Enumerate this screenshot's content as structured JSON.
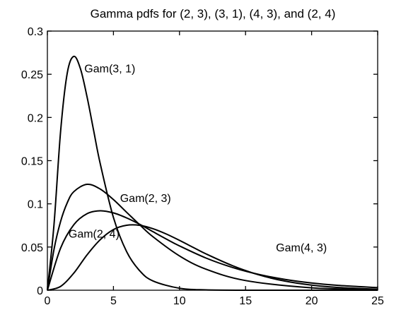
{
  "chart_data": {
    "type": "line",
    "title": "Gamma pdfs for (2, 3), (3, 1), (4, 3), and (2, 4)",
    "xlabel": "",
    "ylabel": "",
    "xlim": [
      0,
      25
    ],
    "ylim": [
      0,
      0.3
    ],
    "grid": false,
    "x_ticks": [
      0,
      5,
      10,
      15,
      20,
      25
    ],
    "x_tick_labels": [
      "0",
      "5",
      "10",
      "15",
      "20",
      "25"
    ],
    "y_ticks": [
      0,
      0.05,
      0.1,
      0.15,
      0.2,
      0.25,
      0.3
    ],
    "y_tick_labels": [
      "0",
      "0.05",
      "0.1",
      "0.15",
      "0.2",
      "0.25",
      "0.3"
    ],
    "series": [
      {
        "name": "Gam(3, 1)",
        "x": [
          0,
          0.5,
          1,
          1.5,
          2,
          2.5,
          3,
          3.5,
          4,
          5,
          6,
          7,
          8,
          10,
          12,
          15,
          20,
          25
        ],
        "y": [
          0,
          0.0758,
          0.1839,
          0.251,
          0.2707,
          0.2565,
          0.224,
          0.185,
          0.1465,
          0.0842,
          0.0446,
          0.0223,
          0.0107,
          0.0023,
          0.0004,
          0.0,
          0.0,
          0.0
        ]
      },
      {
        "name": "Gam(2, 3)",
        "x": [
          0,
          0.5,
          1,
          1.5,
          2,
          3,
          4,
          5,
          6,
          7,
          8,
          10,
          12,
          15,
          20,
          25
        ],
        "y": [
          0,
          0.0472,
          0.0796,
          0.1011,
          0.1141,
          0.1226,
          0.1171,
          0.1049,
          0.0902,
          0.0756,
          0.0618,
          0.0397,
          0.0244,
          0.0112,
          0.0028,
          0.0007
        ]
      },
      {
        "name": "Gam(4, 3)",
        "x": [
          0,
          1,
          2,
          3,
          4,
          5,
          6,
          7,
          8,
          9,
          10,
          11,
          12,
          14,
          16,
          18,
          20,
          22,
          25
        ],
        "y": [
          0,
          0.0044,
          0.0198,
          0.0409,
          0.0585,
          0.0702,
          0.0752,
          0.0751,
          0.0712,
          0.0651,
          0.0577,
          0.0499,
          0.0421,
          0.0285,
          0.0178,
          0.0105,
          0.0059,
          0.0032,
          0.0011
        ]
      },
      {
        "name": "Gam(2, 4)",
        "x": [
          0,
          1,
          2,
          3,
          4,
          5,
          6,
          7,
          8,
          9,
          10,
          12,
          14,
          16,
          18,
          20,
          22,
          25
        ],
        "y": [
          0,
          0.0487,
          0.0758,
          0.0886,
          0.092,
          0.0895,
          0.0837,
          0.0762,
          0.0677,
          0.0593,
          0.0513,
          0.0373,
          0.0264,
          0.0183,
          0.0125,
          0.0084,
          0.0056,
          0.003
        ]
      }
    ],
    "annotations": [
      {
        "text": "Gam(3, 1)",
        "x": 2.8,
        "y": 0.252
      },
      {
        "text": "Gam(2, 3)",
        "x": 5.5,
        "y": 0.102
      },
      {
        "text": "Gam(2, 4)",
        "x": 1.6,
        "y": 0.061
      },
      {
        "text": "Gam(4, 3)",
        "x": 17.3,
        "y": 0.045
      }
    ]
  }
}
